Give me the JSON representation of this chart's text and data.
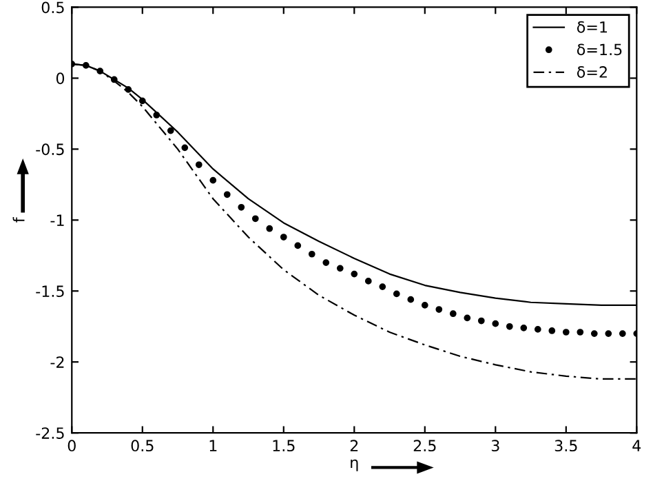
{
  "chart_data": {
    "type": "line",
    "xlabel": "η",
    "ylabel": "f",
    "xlim": [
      0,
      4
    ],
    "ylim": [
      -2.5,
      0.5
    ],
    "xticks": [
      0,
      0.5,
      1,
      1.5,
      2,
      2.5,
      3,
      3.5,
      4
    ],
    "yticks": [
      -2.5,
      -2,
      -1.5,
      -1,
      -0.5,
      0,
      0.5
    ],
    "grid": false,
    "legend": "top right",
    "series": [
      {
        "name": "δ=1",
        "color": "#000000",
        "line_style": "solid",
        "marker": "none",
        "x": [
          0,
          0.1,
          0.2,
          0.3,
          0.4,
          0.5,
          0.75,
          1,
          1.25,
          1.5,
          1.75,
          2,
          2.25,
          2.5,
          2.75,
          3,
          3.25,
          3.5,
          3.75,
          4
        ],
        "values": [
          0.1,
          0.09,
          0.05,
          -0.01,
          -0.07,
          -0.15,
          -0.38,
          -0.64,
          -0.85,
          -1.02,
          -1.15,
          -1.27,
          -1.38,
          -1.46,
          -1.51,
          -1.55,
          -1.58,
          -1.59,
          -1.6,
          -1.6
        ]
      },
      {
        "name": "δ=1.5",
        "type": "scatter",
        "color": "#000000",
        "marker": "circle",
        "x": [
          0,
          0.1,
          0.2,
          0.3,
          0.4,
          0.5,
          0.6,
          0.7,
          0.8,
          0.9,
          1.0,
          1.1,
          1.2,
          1.3,
          1.4,
          1.5,
          1.6,
          1.7,
          1.8,
          1.9,
          2.0,
          2.1,
          2.2,
          2.3,
          2.4,
          2.5,
          2.6,
          2.7,
          2.8,
          2.9,
          3.0,
          3.1,
          3.2,
          3.3,
          3.4,
          3.5,
          3.6,
          3.7,
          3.8,
          3.9,
          4.0
        ],
        "values": [
          0.1,
          0.09,
          0.05,
          -0.01,
          -0.08,
          -0.16,
          -0.26,
          -0.37,
          -0.49,
          -0.61,
          -0.72,
          -0.82,
          -0.91,
          -0.99,
          -1.06,
          -1.12,
          -1.18,
          -1.24,
          -1.3,
          -1.34,
          -1.38,
          -1.43,
          -1.47,
          -1.52,
          -1.56,
          -1.6,
          -1.63,
          -1.66,
          -1.69,
          -1.71,
          -1.73,
          -1.75,
          -1.76,
          -1.77,
          -1.78,
          -1.79,
          -1.79,
          -1.8,
          -1.8,
          -1.8,
          -1.8
        ]
      },
      {
        "name": "δ=2",
        "color": "#000000",
        "line_style": "dashed",
        "marker": "none",
        "x": [
          0,
          0.1,
          0.2,
          0.3,
          0.4,
          0.5,
          0.75,
          1,
          1.25,
          1.5,
          1.75,
          2,
          2.25,
          2.5,
          2.75,
          3,
          3.25,
          3.5,
          3.75,
          4
        ],
        "values": [
          0.1,
          0.09,
          0.05,
          -0.02,
          -0.1,
          -0.2,
          -0.5,
          -0.85,
          -1.12,
          -1.35,
          -1.53,
          -1.67,
          -1.79,
          -1.88,
          -1.96,
          -2.02,
          -2.07,
          -2.1,
          -2.12,
          -2.12
        ]
      }
    ]
  }
}
